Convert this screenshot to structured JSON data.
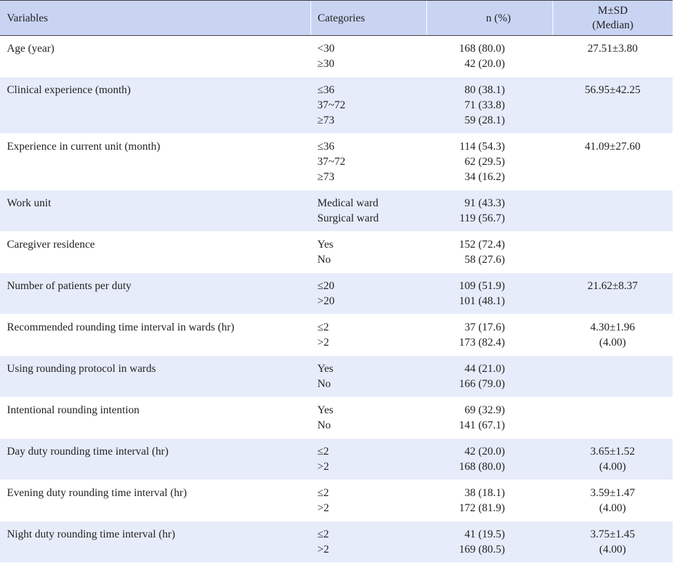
{
  "header": {
    "variables": "Variables",
    "categories": "Categories",
    "n_pct": "n (%)",
    "msd_line1": "M±SD",
    "msd_line2": "(Median)"
  },
  "rows": [
    {
      "variable": "Age (year)",
      "categories": [
        "<30",
        "≥30"
      ],
      "n": [
        "168 (80.0)",
        "42 (20.0)"
      ],
      "msd": [
        "27.51±3.80"
      ]
    },
    {
      "variable": "Clinical experience (month)",
      "categories": [
        "≤36",
        "37~72",
        "≥73"
      ],
      "n": [
        "80 (38.1)",
        "71 (33.8)",
        "59 (28.1)"
      ],
      "msd": [
        "56.95±42.25"
      ]
    },
    {
      "variable": "Experience in current unit (month)",
      "categories": [
        "≤36",
        "37~72",
        "≥73"
      ],
      "n": [
        "114 (54.3)",
        "62 (29.5)",
        "34 (16.2)"
      ],
      "msd": [
        "41.09±27.60"
      ]
    },
    {
      "variable": "Work unit",
      "categories": [
        "Medical ward",
        "Surgical ward"
      ],
      "n": [
        "91 (43.3)",
        "119 (56.7)"
      ],
      "msd": []
    },
    {
      "variable": "Caregiver residence",
      "categories": [
        "Yes",
        "No"
      ],
      "n": [
        "152 (72.4)",
        "58 (27.6)"
      ],
      "msd": []
    },
    {
      "variable": "Number of patients per duty",
      "categories": [
        "≤20",
        ">20"
      ],
      "n": [
        "109 (51.9)",
        "101 (48.1)"
      ],
      "msd": [
        "21.62±8.37"
      ]
    },
    {
      "variable": "Recommended rounding time interval in wards (hr)",
      "categories": [
        "≤2",
        ">2"
      ],
      "n": [
        "37 (17.6)",
        "173 (82.4)"
      ],
      "msd": [
        "4.30±1.96",
        "(4.00)"
      ]
    },
    {
      "variable": "Using rounding protocol in wards",
      "categories": [
        "Yes",
        "No"
      ],
      "n": [
        "44 (21.0)",
        "166 (79.0)"
      ],
      "msd": []
    },
    {
      "variable": "Intentional rounding intention",
      "categories": [
        "Yes",
        "No"
      ],
      "n": [
        "69 (32.9)",
        "141 (67.1)"
      ],
      "msd": []
    },
    {
      "variable": "Day duty rounding time interval (hr)",
      "categories": [
        "≤2",
        ">2"
      ],
      "n": [
        "42 (20.0)",
        "168 (80.0)"
      ],
      "msd": [
        "3.65±1.52",
        "(4.00)"
      ]
    },
    {
      "variable": "Evening duty rounding time interval (hr)",
      "categories": [
        "≤2",
        ">2"
      ],
      "n": [
        "38 (18.1)",
        "172 (81.9)"
      ],
      "msd": [
        "3.59±1.47",
        "(4.00)"
      ]
    },
    {
      "variable": "Night duty rounding time interval (hr)",
      "categories": [
        "≤2",
        ">2"
      ],
      "n": [
        "41 (19.5)",
        "169 (80.5)"
      ],
      "msd": [
        "3.75±1.45",
        "(4.00)"
      ]
    }
  ]
}
